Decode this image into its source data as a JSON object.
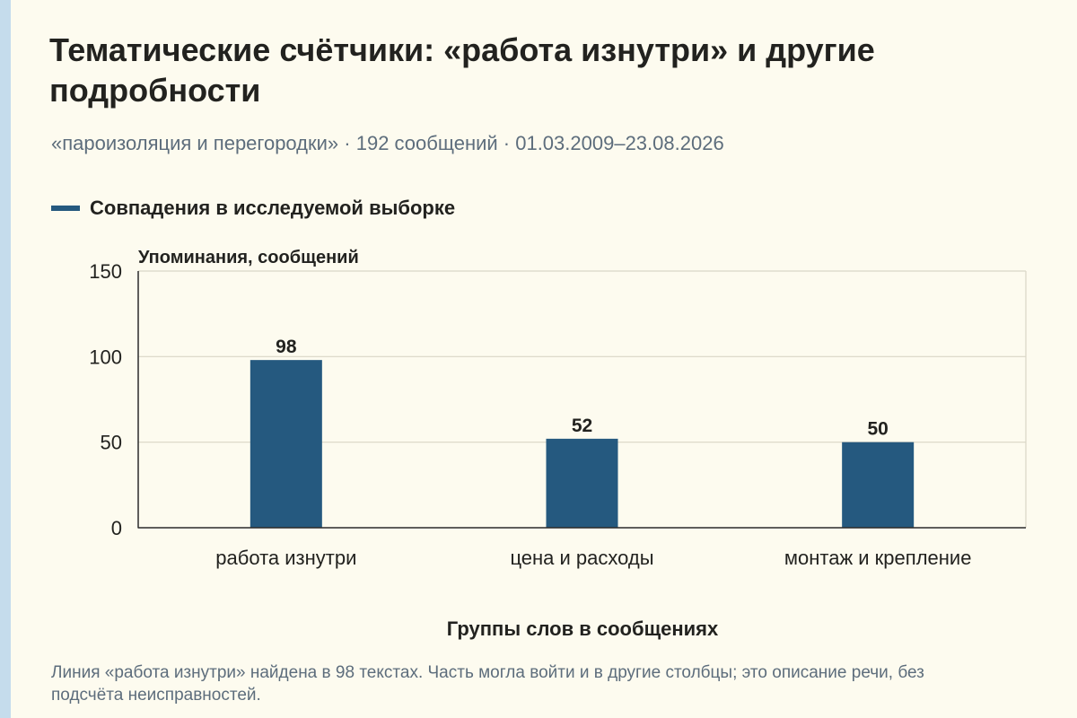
{
  "title": "Тематические счётчики: «работа изнутри» и другие подробности",
  "subtitle": "«пароизоляция и перегородки» · 192 сообщений · 01.03.2009–23.08.2026",
  "legend": {
    "label": "Совпадения в исследуемой выборке"
  },
  "footnote": "Линия «работа изнутри» найдена в 98 текстах. Часть могла войти и в другие столбцы; это описание речи, без подсчёта неисправностей.",
  "colors": {
    "background": "#fdfbef",
    "bar": "#25597f",
    "text": "#22221f",
    "muted": "#5d6d7c",
    "grid": "#d9d6c6",
    "axis": "#2b2b2b"
  },
  "chart_data": {
    "type": "bar",
    "categories": [
      "работа изнутри",
      "цена и расходы",
      "монтаж и крепление"
    ],
    "series": [
      {
        "name": "Совпадения в исследуемой выборке",
        "values": [
          98,
          52,
          50
        ]
      }
    ],
    "data_labels": [
      "98",
      "52",
      "50"
    ],
    "ylabel": "Упоминания, сообщений",
    "xlabel": "Группы слов в сообщениях",
    "ylim": [
      0,
      150
    ],
    "yticks": [
      0,
      50,
      100,
      150
    ],
    "grid": true,
    "legend_position": "top-left"
  }
}
